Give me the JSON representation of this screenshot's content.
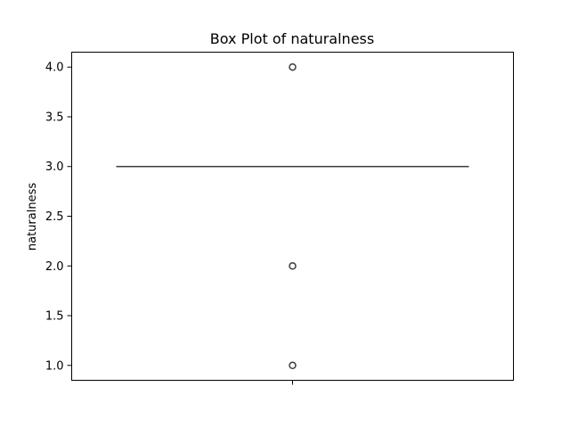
{
  "chart_data": {
    "type": "box",
    "title": "Box Plot of naturalness",
    "xlabel": "",
    "ylabel": "naturalness",
    "ylim": [
      0.85,
      4.15
    ],
    "yticks": [
      "1.0",
      "1.5",
      "2.0",
      "2.5",
      "3.0",
      "3.5",
      "4.0"
    ],
    "box": {
      "min": 3.0,
      "q1": 3.0,
      "median": 3.0,
      "q3": 3.0,
      "max": 3.0,
      "outliers": [
        1.0,
        2.0,
        4.0
      ]
    },
    "grid": false,
    "legend": "none",
    "colors": {
      "box_edge": "#3d3d3d",
      "axes": "#000000"
    }
  }
}
